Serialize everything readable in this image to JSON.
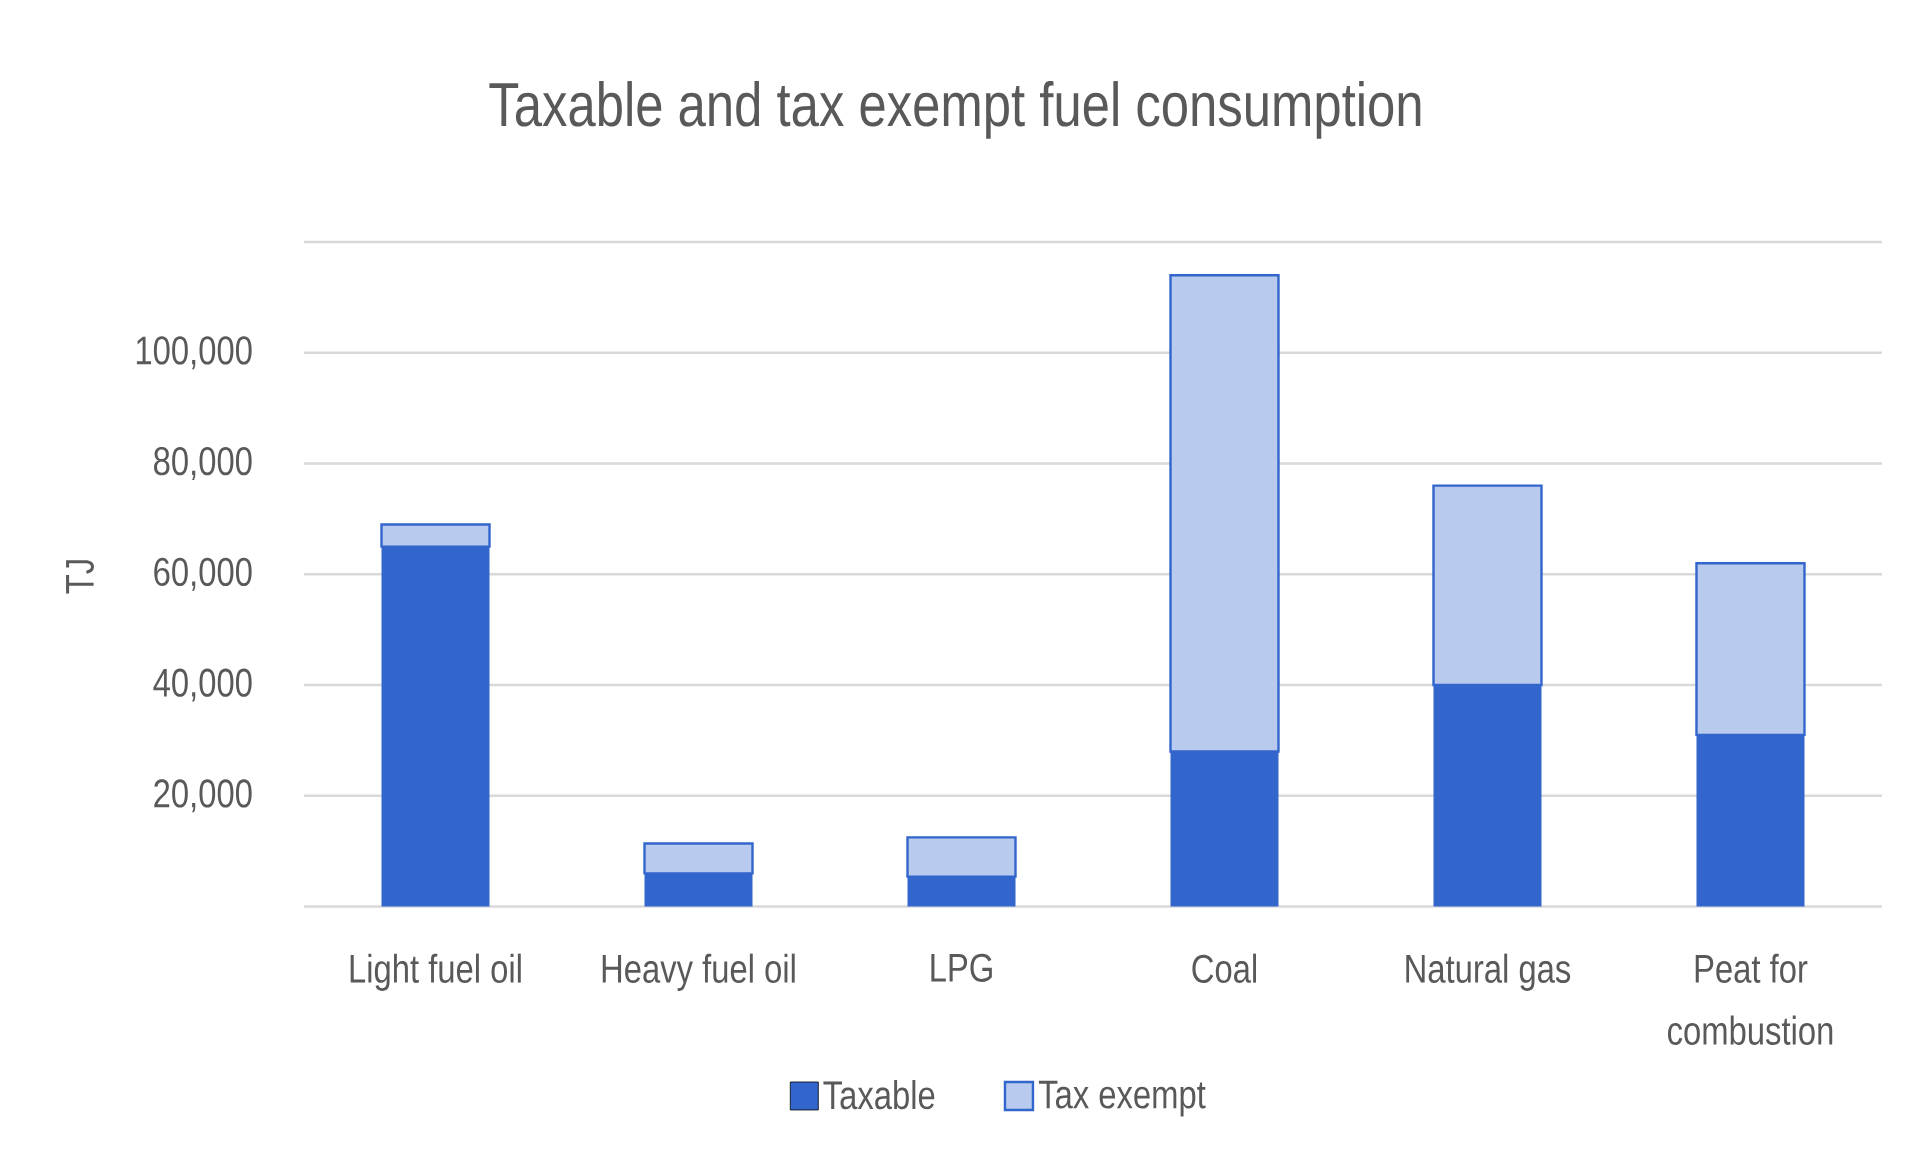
{
  "chart_data": {
    "type": "bar",
    "title": "Taxable and tax exempt fuel consumption",
    "ylabel": "TJ",
    "categories": [
      "Light fuel oil",
      "Heavy fuel oil",
      "LPG",
      "Coal",
      "Natural gas",
      "Peat for combustion"
    ],
    "stacked": true,
    "series": [
      {
        "name": "Taxable",
        "color": "#3366cc",
        "values": [
          65000,
          6000,
          5400,
          28000,
          40000,
          31000
        ]
      },
      {
        "name": "Tax exempt",
        "color": "#b8caed",
        "values": [
          4000,
          5400,
          7100,
          86000,
          36000,
          31000
        ]
      }
    ],
    "ylim": [
      0,
      120000
    ],
    "yticks": [
      {
        "value": 0,
        "label": null
      },
      {
        "value": 20000,
        "label": "20,000"
      },
      {
        "value": 40000,
        "label": "40,000"
      },
      {
        "value": 60000,
        "label": "60,000"
      },
      {
        "value": 80000,
        "label": "80,000"
      },
      {
        "value": 100000,
        "label": "100,000"
      },
      {
        "value": 120000,
        "label": null
      }
    ],
    "grid": "y",
    "legend": "bottom"
  }
}
